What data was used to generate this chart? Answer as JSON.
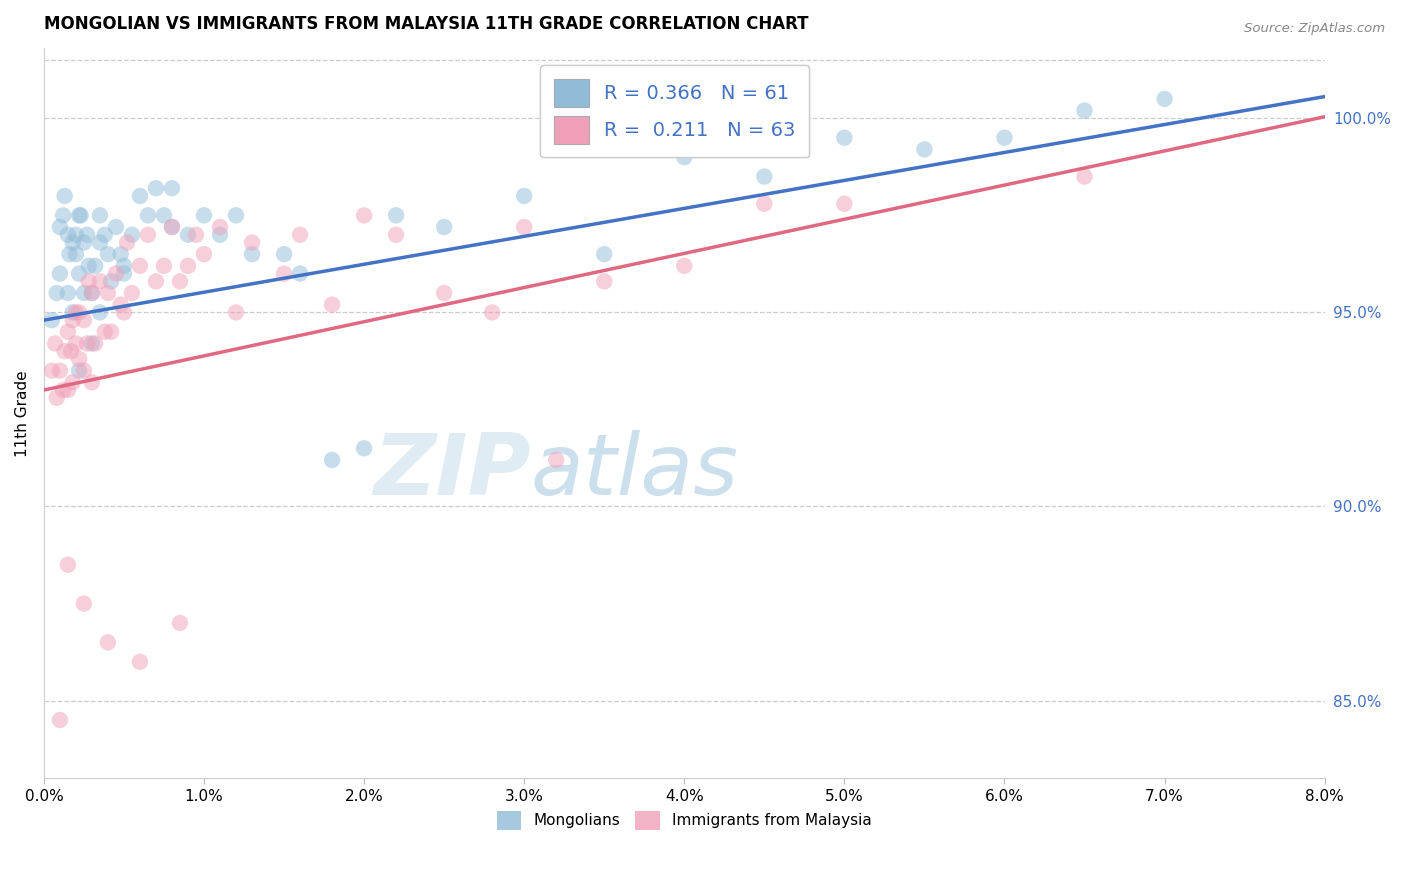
{
  "title": "MONGOLIAN VS IMMIGRANTS FROM MALAYSIA 11TH GRADE CORRELATION CHART",
  "source": "Source: ZipAtlas.com",
  "ylabel": "11th Grade",
  "x_min": 0.0,
  "x_max": 8.0,
  "y_min": 83.0,
  "y_max": 101.8,
  "y_ticks": [
    85.0,
    90.0,
    95.0,
    100.0
  ],
  "x_ticks": [
    0.0,
    1.0,
    2.0,
    3.0,
    4.0,
    5.0,
    6.0,
    7.0,
    8.0
  ],
  "r_mongolian": 0.366,
  "n_mongolian": 61,
  "r_malaysia": 0.211,
  "n_malaysia": 63,
  "blue_scatter_color": "#90bcd8",
  "pink_scatter_color": "#f0a0b8",
  "line_blue": "#4472c4",
  "line_pink": "#e06880",
  "text_blue": "#4472c4",
  "blue_intercept": 94.8,
  "blue_slope": 0.72,
  "pink_intercept": 93.0,
  "pink_slope": 0.88,
  "mongolian_x": [
    0.05,
    0.08,
    0.1,
    0.1,
    0.12,
    0.13,
    0.15,
    0.15,
    0.16,
    0.18,
    0.18,
    0.2,
    0.2,
    0.22,
    0.22,
    0.23,
    0.25,
    0.25,
    0.27,
    0.28,
    0.3,
    0.3,
    0.32,
    0.35,
    0.35,
    0.38,
    0.4,
    0.42,
    0.45,
    0.48,
    0.5,
    0.55,
    0.6,
    0.65,
    0.7,
    0.75,
    0.8,
    0.9,
    1.0,
    1.1,
    1.2,
    1.3,
    1.5,
    1.6,
    1.8,
    2.0,
    2.2,
    2.5,
    3.0,
    3.5,
    4.0,
    4.5,
    5.0,
    5.5,
    6.0,
    6.5,
    7.0,
    0.22,
    0.35,
    0.5,
    0.8
  ],
  "mongolian_y": [
    94.8,
    95.5,
    96.0,
    97.2,
    97.5,
    98.0,
    95.5,
    97.0,
    96.5,
    95.0,
    96.8,
    96.5,
    97.0,
    97.5,
    96.0,
    97.5,
    95.5,
    96.8,
    97.0,
    96.2,
    94.2,
    95.5,
    96.2,
    97.5,
    96.8,
    97.0,
    96.5,
    95.8,
    97.2,
    96.5,
    96.0,
    97.0,
    98.0,
    97.5,
    98.2,
    97.5,
    97.2,
    97.0,
    97.5,
    97.0,
    97.5,
    96.5,
    96.5,
    96.0,
    91.2,
    91.5,
    97.5,
    97.2,
    98.0,
    96.5,
    99.0,
    98.5,
    99.5,
    99.2,
    99.5,
    100.2,
    100.5,
    93.5,
    95.0,
    96.2,
    98.2
  ],
  "malaysia_x": [
    0.05,
    0.07,
    0.08,
    0.1,
    0.1,
    0.12,
    0.13,
    0.15,
    0.15,
    0.17,
    0.18,
    0.18,
    0.2,
    0.2,
    0.22,
    0.22,
    0.25,
    0.25,
    0.27,
    0.28,
    0.3,
    0.3,
    0.32,
    0.35,
    0.38,
    0.4,
    0.42,
    0.45,
    0.48,
    0.5,
    0.52,
    0.55,
    0.6,
    0.65,
    0.7,
    0.75,
    0.8,
    0.85,
    0.9,
    0.95,
    1.0,
    1.1,
    1.2,
    1.3,
    1.5,
    1.6,
    1.8,
    2.0,
    2.2,
    2.5,
    2.8,
    3.0,
    3.5,
    4.0,
    4.5,
    5.0,
    6.5,
    0.15,
    0.25,
    0.4,
    0.6,
    0.85,
    3.2
  ],
  "malaysia_y": [
    93.5,
    94.2,
    92.8,
    93.5,
    84.5,
    93.0,
    94.0,
    94.5,
    93.0,
    94.0,
    94.8,
    93.2,
    94.2,
    95.0,
    93.8,
    95.0,
    93.5,
    94.8,
    94.2,
    95.8,
    93.2,
    95.5,
    94.2,
    95.8,
    94.5,
    95.5,
    94.5,
    96.0,
    95.2,
    95.0,
    96.8,
    95.5,
    96.2,
    97.0,
    95.8,
    96.2,
    97.2,
    95.8,
    96.2,
    97.0,
    96.5,
    97.2,
    95.0,
    96.8,
    96.0,
    97.0,
    95.2,
    97.5,
    97.0,
    95.5,
    95.0,
    97.2,
    95.8,
    96.2,
    97.8,
    97.8,
    98.5,
    88.5,
    87.5,
    86.5,
    86.0,
    87.0,
    91.2
  ],
  "legend_blue": "Mongolians",
  "legend_pink": "Immigrants from Malaysia"
}
